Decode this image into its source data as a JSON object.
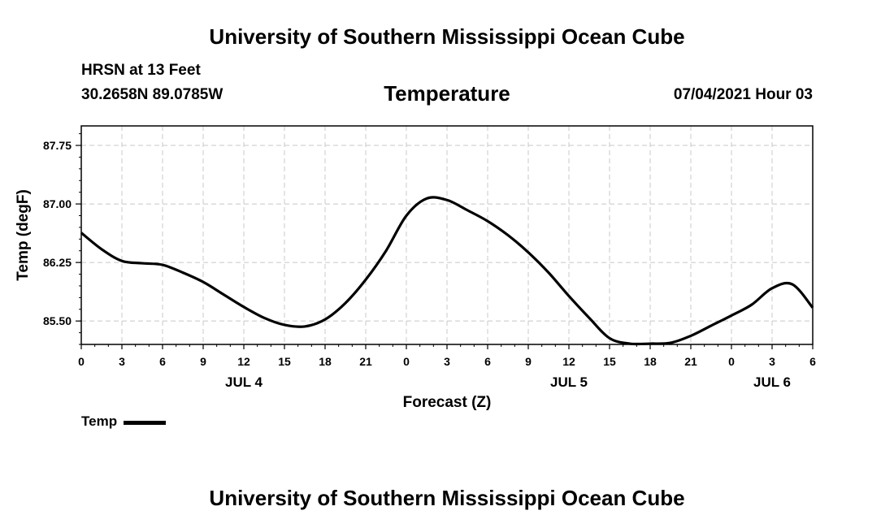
{
  "header": {
    "title": "University of Southern Mississippi Ocean Cube",
    "station": "HRSN at 13 Feet",
    "coords": "30.2658N  89.0785W",
    "timestamp": "07/04/2021 Hour 03"
  },
  "footer": {
    "title": "University of Southern Mississippi Ocean Cube"
  },
  "chart_data": {
    "type": "line",
    "title": "Temperature",
    "xlabel": "Forecast (Z)",
    "ylabel": "Temp (degF)",
    "xlim": [
      0,
      54
    ],
    "ylim": [
      85.2,
      88.0
    ],
    "y_ticks": [
      85.5,
      86.25,
      87.0,
      87.75
    ],
    "y_tick_labels": [
      "85.50",
      "86.25",
      "87.00",
      "87.75"
    ],
    "x_ticks": [
      0,
      3,
      6,
      9,
      12,
      15,
      18,
      21,
      24,
      27,
      30,
      33,
      36,
      39,
      42,
      45,
      48,
      51,
      54
    ],
    "x_tick_labels": [
      "0",
      "3",
      "6",
      "9",
      "12",
      "15",
      "18",
      "21",
      "0",
      "3",
      "6",
      "9",
      "12",
      "15",
      "18",
      "21",
      "0",
      "3",
      "6"
    ],
    "day_labels": [
      {
        "x": 12,
        "label": "JUL 4"
      },
      {
        "x": 36,
        "label": "JUL 5"
      },
      {
        "x": 51,
        "label": "JUL 6"
      }
    ],
    "grid": true,
    "legend": "bottom-left",
    "series": [
      {
        "name": "Temp",
        "color": "#000000",
        "x": [
          0,
          1.5,
          3,
          4.5,
          6,
          7.5,
          9,
          10.5,
          12,
          13.5,
          15,
          16.5,
          18,
          19.5,
          21,
          22.5,
          24,
          25.5,
          27,
          28.5,
          30,
          31.5,
          33,
          34.5,
          36,
          37.5,
          39,
          40.5,
          42,
          43.5,
          45,
          46.5,
          48,
          49.5,
          51,
          52.5,
          54
        ],
        "values": [
          86.63,
          86.42,
          86.27,
          86.24,
          86.22,
          86.12,
          86.0,
          85.84,
          85.68,
          85.54,
          85.45,
          85.43,
          85.52,
          85.73,
          86.03,
          86.4,
          86.85,
          87.07,
          87.05,
          86.92,
          86.78,
          86.6,
          86.38,
          86.12,
          85.82,
          85.54,
          85.28,
          85.21,
          85.21,
          85.22,
          85.31,
          85.44,
          85.57,
          85.71,
          85.92,
          85.97,
          85.67
        ]
      }
    ]
  },
  "legend": {
    "label": "Temp"
  }
}
